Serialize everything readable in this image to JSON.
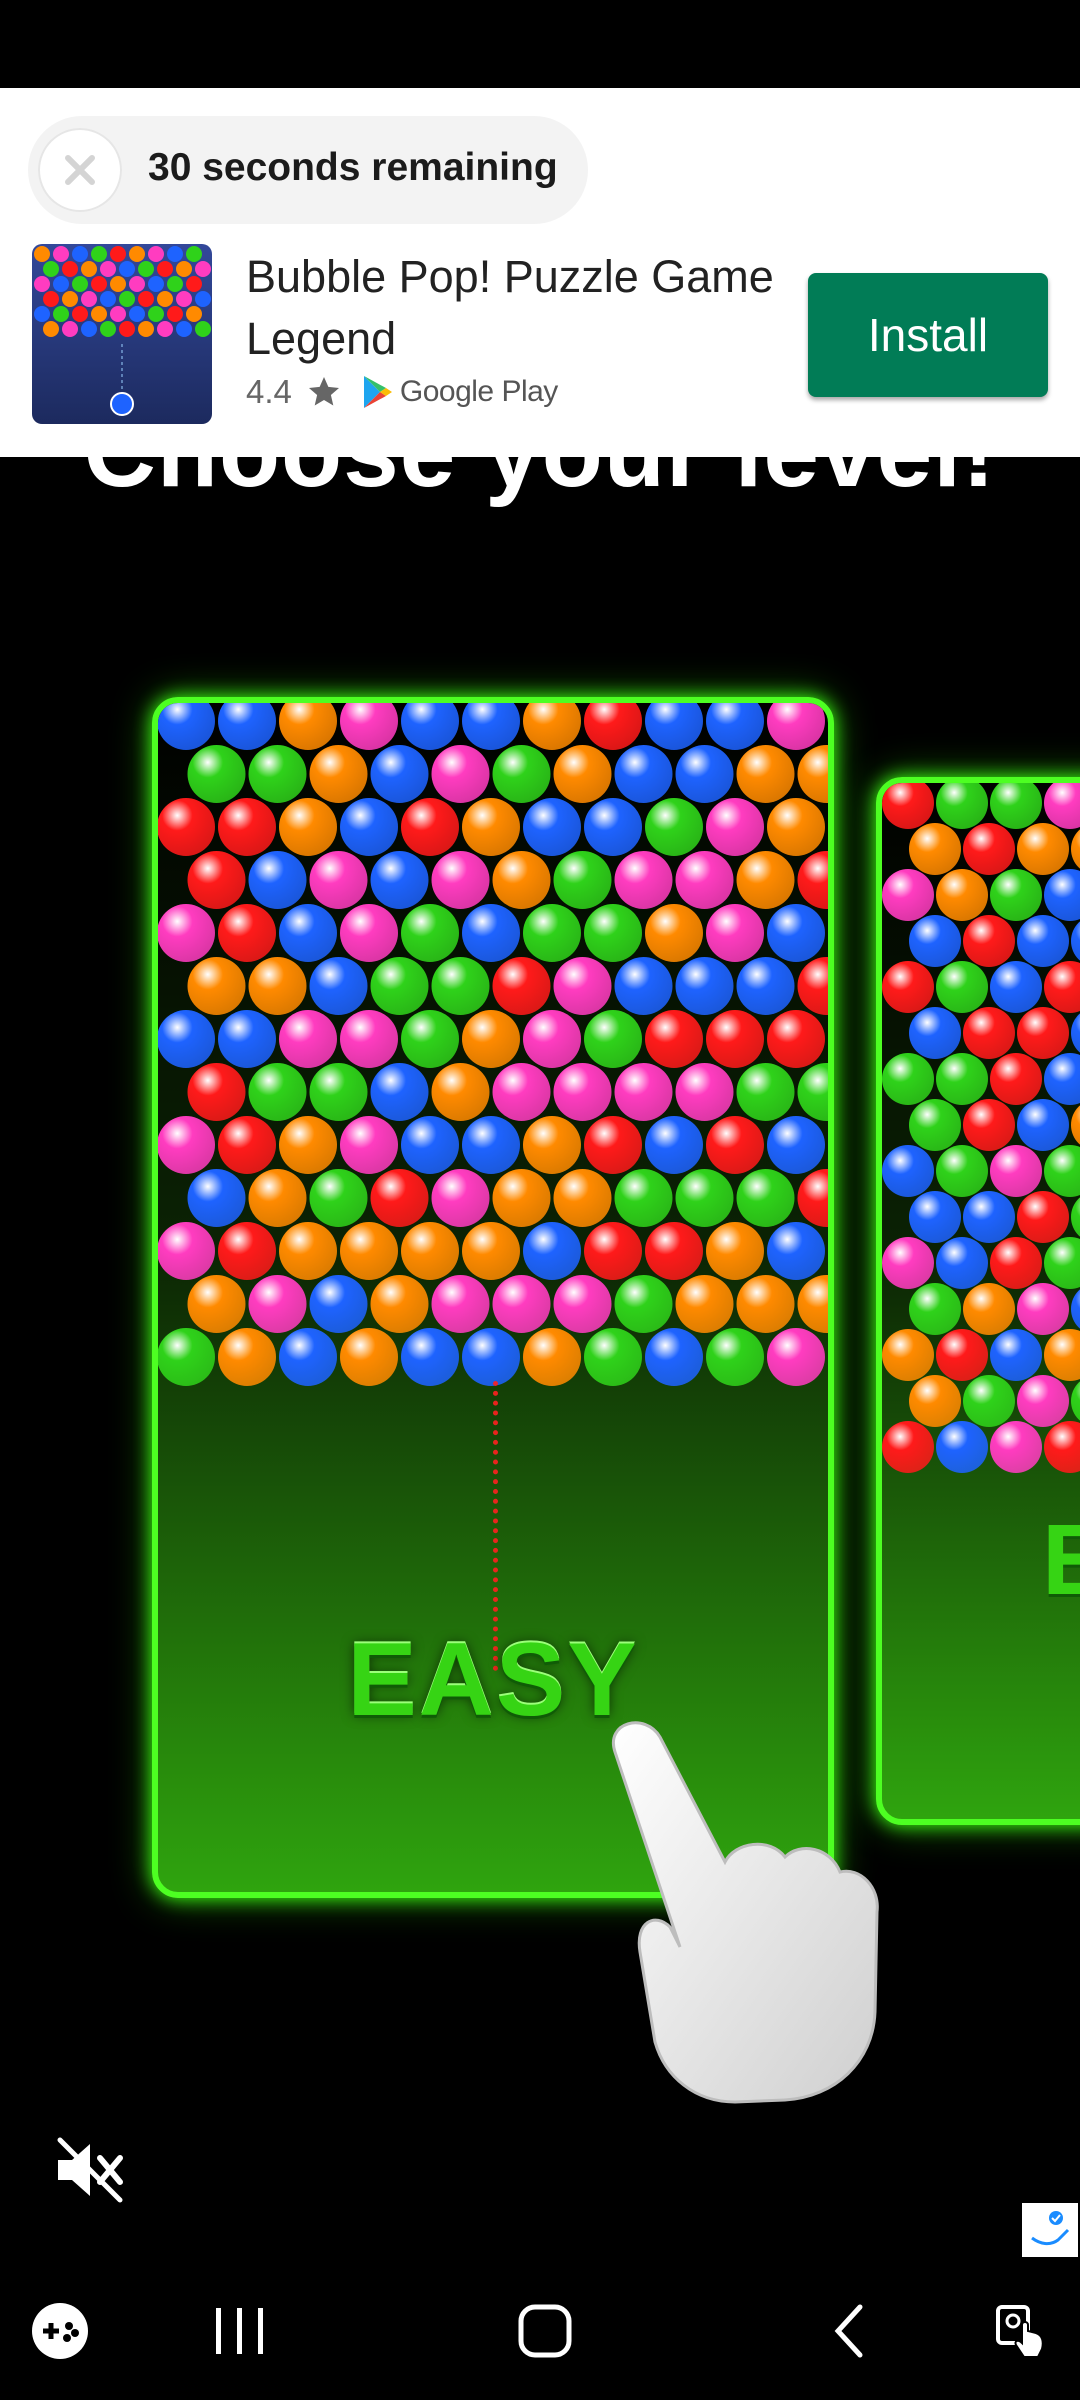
{
  "ad": {
    "timer_text": "30 seconds remaining",
    "app_name": "Bubble Pop! Puzzle Game Legend",
    "rating": "4.4",
    "store_label": "Google Play",
    "install_label": "Install",
    "brand_color": "#017c56"
  },
  "game": {
    "title": "Choose your level!",
    "level_easy": "EASY",
    "level_next_partial": "E",
    "bubble_colors": [
      "#ff8a00",
      "#ff3cc0",
      "#1e63ff",
      "#2fd21a",
      "#ff1a1a"
    ],
    "glow_color": "#4dff22"
  },
  "icons": {
    "close": "close-icon",
    "star": "star-icon",
    "play_store": "google-play-icon",
    "mute": "mute-icon",
    "adchoices": "adchoices-icon",
    "game_launcher": "game-launcher-icon",
    "recents": "recents-icon",
    "home": "home-icon",
    "back": "back-icon",
    "accessibility": "accessibility-icon"
  }
}
